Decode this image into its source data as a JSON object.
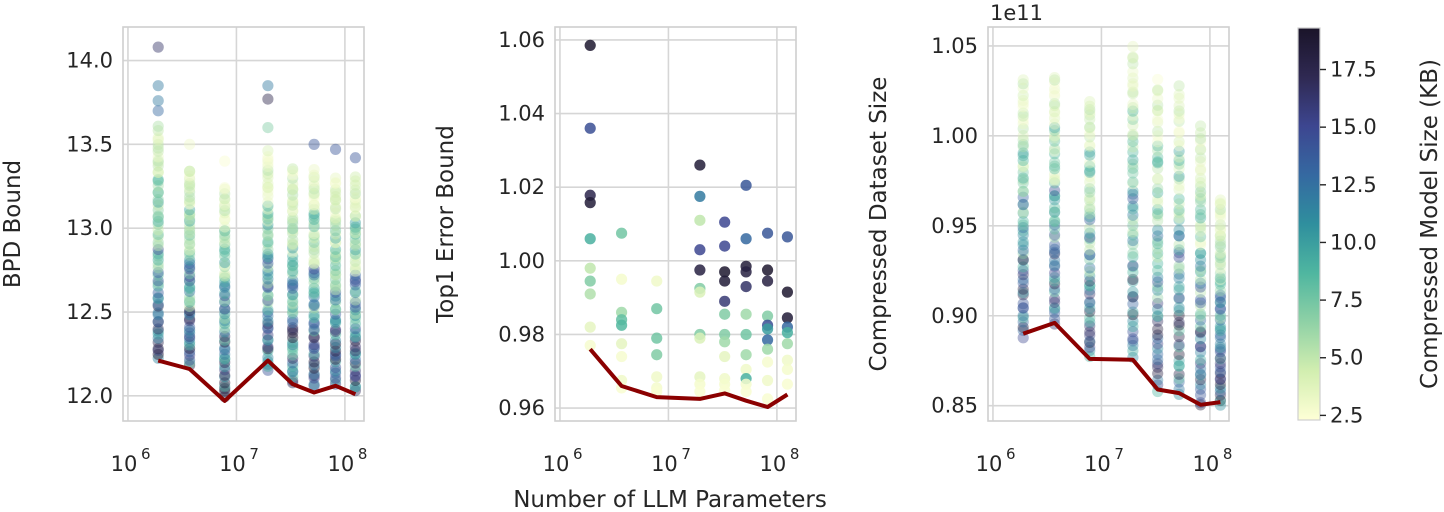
{
  "figure": {
    "shared_xlabel": "Number of LLM Parameters",
    "colorbar": {
      "label": "Compressed Model Size (KB)",
      "range": [
        2.3,
        19.3
      ],
      "ticks": [
        "2.5",
        "5.0",
        "7.5",
        "10.0",
        "12.5",
        "15.0",
        "17.5"
      ],
      "tick_values": [
        2.5,
        5.0,
        7.5,
        10.0,
        12.5,
        15.0,
        17.5
      ],
      "colormap": [
        "#feffd6",
        "#d2eeb0",
        "#8fd1a6",
        "#4fb6a0",
        "#2f8f9e",
        "#3569a1",
        "#3d4690",
        "#2f2952",
        "#1a1429"
      ]
    }
  },
  "chart_data": [
    {
      "type": "scatter",
      "ylabel": "BPD Bound",
      "xscale": "log",
      "xlim": [
        900000,
        150000000
      ],
      "ylim": [
        11.85,
        14.2
      ],
      "xticks": [
        1000000,
        10000000,
        100000000
      ],
      "xtick_labels": [
        {
          "base": "10",
          "exp": "6"
        },
        {
          "base": "10",
          "exp": "7"
        },
        {
          "base": "10",
          "exp": "8"
        }
      ],
      "yticks": [
        12.0,
        12.5,
        13.0,
        13.5,
        14.0
      ],
      "ytick_labels": [
        "12.0",
        "12.5",
        "13.0",
        "13.5",
        "14.0"
      ],
      "point_alpha": 0.45,
      "columns": [
        {
          "x": 1900000,
          "y_min": 12.22,
          "y_max": 13.6,
          "outliers": [
            [
              14.08,
              16.5
            ],
            [
              13.85,
              12
            ],
            [
              13.76,
              12
            ],
            [
              13.7,
              13
            ]
          ]
        },
        {
          "x": 3700000,
          "y_min": 12.18,
          "y_max": 13.35,
          "outliers": [
            [
              13.5,
              3
            ]
          ]
        },
        {
          "x": 7800000,
          "y_min": 12.0,
          "y_max": 13.25,
          "outliers": [
            [
              13.4,
              2.6
            ]
          ]
        },
        {
          "x": 19500000,
          "y_min": 12.15,
          "y_max": 13.45,
          "outliers": [
            [
              13.85,
              12
            ],
            [
              13.77,
              17.5
            ],
            [
              13.6,
              7
            ]
          ]
        },
        {
          "x": 33000000,
          "y_min": 12.07,
          "y_max": 13.35,
          "outliers": []
        },
        {
          "x": 52000000,
          "y_min": 12.05,
          "y_max": 13.35,
          "outliers": [
            [
              13.5,
              14
            ]
          ]
        },
        {
          "x": 82000000,
          "y_min": 12.07,
          "y_max": 13.3,
          "outliers": [
            [
              13.47,
              14
            ]
          ]
        },
        {
          "x": 125000000,
          "y_min": 12.02,
          "y_max": 13.3,
          "outliers": [
            [
              13.42,
              14
            ]
          ]
        }
      ],
      "frontier": {
        "x": [
          1900000,
          3700000,
          7800000,
          19500000,
          33000000,
          52000000,
          82000000,
          125000000
        ],
        "y": [
          12.21,
          12.16,
          11.97,
          12.21,
          12.07,
          12.02,
          12.06,
          12.01
        ]
      }
    },
    {
      "type": "scatter",
      "ylabel": "Top1 Error Bound",
      "xscale": "log",
      "xlim": [
        900000,
        150000000
      ],
      "ylim": [
        0.9565,
        1.0635
      ],
      "xticks": [
        1000000,
        10000000,
        100000000
      ],
      "xtick_labels": [
        {
          "base": "10",
          "exp": "6"
        },
        {
          "base": "10",
          "exp": "7"
        },
        {
          "base": "10",
          "exp": "8"
        }
      ],
      "yticks": [
        0.96,
        0.98,
        1.0,
        1.02,
        1.04,
        1.06
      ],
      "ytick_labels": [
        "0.96",
        "0.98",
        "1.00",
        "1.02",
        "1.04",
        "1.06"
      ],
      "point_alpha": 0.85,
      "columns": [
        {
          "x": 1900000,
          "points": [
            [
              1.0585,
              19
            ],
            [
              1.036,
              14.5
            ],
            [
              1.0178,
              17.5
            ],
            [
              1.0158,
              18.5
            ],
            [
              1.006,
              9
            ],
            [
              0.998,
              5
            ],
            [
              0.9945,
              7
            ],
            [
              0.991,
              5.5
            ],
            [
              0.982,
              3.5
            ],
            [
              0.977,
              2.7
            ]
          ]
        },
        {
          "x": 3700000,
          "points": [
            [
              1.0075,
              7.5
            ],
            [
              0.995,
              2.8
            ],
            [
              0.986,
              6
            ],
            [
              0.984,
              8
            ],
            [
              0.9825,
              8.5
            ],
            [
              0.9775,
              3.5
            ],
            [
              0.974,
              2.7
            ],
            [
              0.9675,
              3
            ],
            [
              0.9655,
              2.6
            ]
          ]
        },
        {
          "x": 7800000,
          "points": [
            [
              0.9945,
              3
            ],
            [
              0.987,
              7.5
            ],
            [
              0.979,
              7.5
            ],
            [
              0.9745,
              7
            ],
            [
              0.9685,
              3
            ],
            [
              0.9655,
              2.8
            ],
            [
              0.9645,
              2.6
            ]
          ]
        },
        {
          "x": 19500000,
          "points": [
            [
              1.026,
              18.5
            ],
            [
              1.0175,
              12
            ],
            [
              1.011,
              5
            ],
            [
              1.003,
              15
            ],
            [
              0.9975,
              18
            ],
            [
              0.9925,
              7
            ],
            [
              0.9915,
              4
            ],
            [
              0.98,
              7
            ],
            [
              0.979,
              4
            ],
            [
              0.9685,
              3.5
            ],
            [
              0.9665,
              2.8
            ],
            [
              0.9645,
              2.6
            ]
          ]
        },
        {
          "x": 33000000,
          "points": [
            [
              1.0105,
              15
            ],
            [
              1.004,
              15
            ],
            [
              0.997,
              19
            ],
            [
              0.9945,
              18.5
            ],
            [
              0.989,
              16
            ],
            [
              0.9855,
              7
            ],
            [
              0.98,
              7
            ],
            [
              0.978,
              6
            ],
            [
              0.974,
              3.5
            ],
            [
              0.968,
              3
            ],
            [
              0.9665,
              2.8
            ],
            [
              0.9648,
              2.6
            ]
          ]
        },
        {
          "x": 52000000,
          "points": [
            [
              1.0205,
              14
            ],
            [
              1.006,
              13
            ],
            [
              0.9985,
              18.5
            ],
            [
              0.997,
              18
            ],
            [
              0.993,
              16.5
            ],
            [
              0.9855,
              6
            ],
            [
              0.98,
              7.5
            ],
            [
              0.9745,
              6
            ],
            [
              0.9705,
              3
            ],
            [
              0.968,
              9
            ],
            [
              0.9665,
              2.8
            ],
            [
              0.9645,
              2.6
            ]
          ]
        },
        {
          "x": 82000000,
          "points": [
            [
              1.0075,
              14
            ],
            [
              0.9975,
              19
            ],
            [
              0.9945,
              18
            ],
            [
              0.985,
              7
            ],
            [
              0.9825,
              14.5
            ],
            [
              0.9815,
              10
            ],
            [
              0.9785,
              13
            ],
            [
              0.976,
              6
            ],
            [
              0.9725,
              2.7
            ],
            [
              0.9675,
              3
            ],
            [
              0.9625,
              2.6
            ]
          ]
        },
        {
          "x": 125000000,
          "points": [
            [
              1.0065,
              14
            ],
            [
              0.9915,
              19
            ],
            [
              0.9845,
              18.5
            ],
            [
              0.982,
              13
            ],
            [
              0.9805,
              9
            ],
            [
              0.9775,
              6
            ],
            [
              0.973,
              3
            ],
            [
              0.9705,
              2.8
            ],
            [
              0.9665,
              2.6
            ]
          ]
        }
      ],
      "frontier": {
        "x": [
          1900000,
          3700000,
          7800000,
          19500000,
          33000000,
          52000000,
          82000000,
          125000000
        ],
        "y": [
          0.976,
          0.966,
          0.963,
          0.9625,
          0.964,
          0.962,
          0.9603,
          0.9637
        ]
      }
    },
    {
      "type": "scatter",
      "ylabel": "Compressed Dataset Size",
      "y_offset_label": "1e11",
      "xscale": "log",
      "xlim": [
        900000,
        150000000
      ],
      "ylim": [
        0.8415,
        1.0605
      ],
      "xticks": [
        1000000,
        10000000,
        100000000
      ],
      "xtick_labels": [
        {
          "base": "10",
          "exp": "6"
        },
        {
          "base": "10",
          "exp": "7"
        },
        {
          "base": "10",
          "exp": "8"
        }
      ],
      "yticks": [
        0.85,
        0.9,
        0.95,
        1.0,
        1.05
      ],
      "ytick_labels": [
        "0.85",
        "0.90",
        "0.95",
        "1.00",
        "1.05"
      ],
      "point_alpha": 0.4,
      "columns": [
        {
          "x": 1900000,
          "y_min": 0.889,
          "y_max": 1.03,
          "outliers": []
        },
        {
          "x": 3700000,
          "y_min": 0.896,
          "y_max": 1.033,
          "outliers": []
        },
        {
          "x": 7800000,
          "y_min": 0.877,
          "y_max": 1.02,
          "outliers": []
        },
        {
          "x": 19500000,
          "y_min": 0.877,
          "y_max": 1.048,
          "outliers": []
        },
        {
          "x": 33000000,
          "y_min": 0.858,
          "y_max": 1.03,
          "outliers": []
        },
        {
          "x": 52000000,
          "y_min": 0.856,
          "y_max": 1.027,
          "outliers": []
        },
        {
          "x": 82000000,
          "y_min": 0.85,
          "y_max": 1.004,
          "outliers": []
        },
        {
          "x": 125000000,
          "y_min": 0.85,
          "y_max": 0.965,
          "outliers": []
        }
      ],
      "frontier": {
        "x": [
          1900000,
          3700000,
          7800000,
          19500000,
          33000000,
          52000000,
          82000000,
          125000000
        ],
        "y": [
          0.89,
          0.896,
          0.876,
          0.8755,
          0.859,
          0.857,
          0.8505,
          0.852
        ]
      }
    }
  ]
}
